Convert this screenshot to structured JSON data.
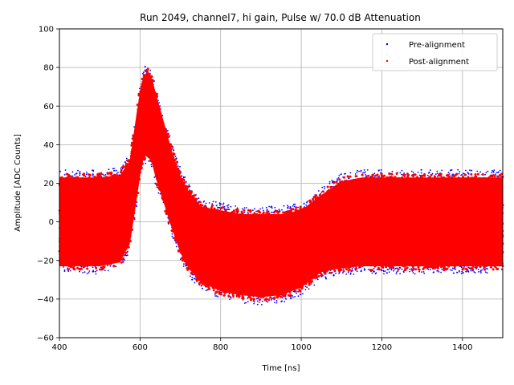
{
  "chart_data": {
    "type": "scatter",
    "title": "Run 2049, channel7, hi gain, Pulse w/ 70.0 dB Attenuation",
    "xlabel": "Time [ns]",
    "ylabel": "Amplitude [ADC Counts]",
    "xlim": [
      400,
      1500
    ],
    "ylim": [
      -60,
      100
    ],
    "x_ticks": [
      400,
      600,
      800,
      1000,
      1200,
      1400
    ],
    "y_ticks": [
      -60,
      -40,
      -20,
      0,
      20,
      40,
      60,
      80,
      100
    ],
    "grid": true,
    "legend_position": "top-right",
    "series": [
      {
        "name": "Pre-alignment",
        "color": "#0000ff",
        "marker": "dot",
        "envelope": {
          "x": [
            400,
            450,
            500,
            550,
            575,
            590,
            600,
            610,
            620,
            630,
            640,
            660,
            680,
            700,
            720,
            750,
            800,
            850,
            900,
            950,
            1000,
            1050,
            1100,
            1150,
            1200,
            1300,
            1400,
            1500
          ],
          "upper": [
            27,
            27,
            27,
            28,
            36,
            58,
            72,
            80,
            82,
            78,
            70,
            55,
            40,
            28,
            20,
            12,
            10,
            8,
            8,
            8,
            10,
            18,
            25,
            27,
            27,
            27,
            27,
            27
          ],
          "lower": [
            -27,
            -27,
            -27,
            -25,
            -15,
            5,
            20,
            30,
            30,
            26,
            18,
            5,
            -8,
            -20,
            -28,
            -35,
            -40,
            -42,
            -43,
            -42,
            -38,
            -30,
            -28,
            -27,
            -27,
            -27,
            -27,
            -27
          ]
        }
      },
      {
        "name": "Post-alignment",
        "color": "#ff0000",
        "marker": "dot",
        "envelope": {
          "x": [
            400,
            450,
            500,
            550,
            575,
            590,
            600,
            610,
            620,
            630,
            640,
            660,
            680,
            700,
            720,
            750,
            800,
            850,
            900,
            950,
            1000,
            1050,
            1100,
            1150,
            1200,
            1300,
            1400,
            1500
          ],
          "upper": [
            25,
            25,
            25,
            26,
            34,
            56,
            70,
            78,
            80,
            76,
            68,
            53,
            38,
            26,
            18,
            10,
            8,
            6,
            6,
            6,
            8,
            16,
            23,
            25,
            25,
            25,
            25,
            25
          ],
          "lower": [
            -25,
            -25,
            -25,
            -23,
            -13,
            7,
            22,
            32,
            32,
            28,
            20,
            7,
            -6,
            -18,
            -26,
            -33,
            -38,
            -40,
            -41,
            -40,
            -36,
            -28,
            -26,
            -25,
            -25,
            -25,
            -25,
            -25
          ]
        }
      }
    ]
  }
}
